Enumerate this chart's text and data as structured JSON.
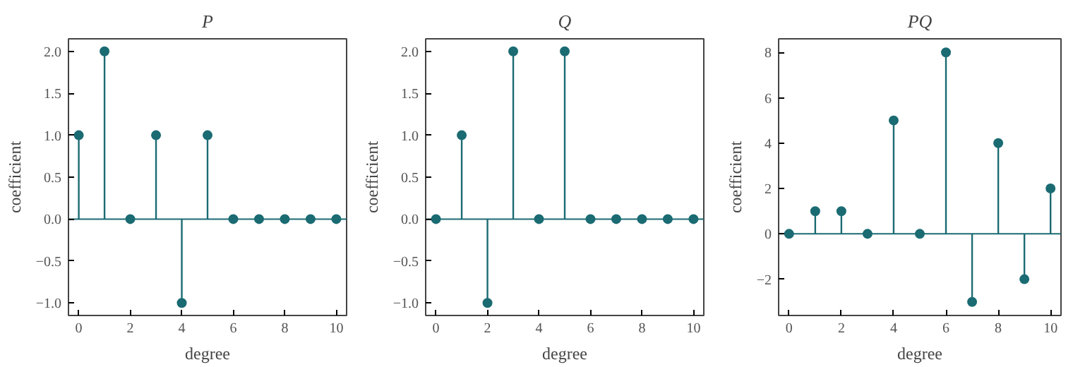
{
  "chart_data": [
    {
      "type": "lollipop",
      "title": "P",
      "ref_lines": [
        {
          "axis": "y",
          "value": 0
        }
      ],
      "xlabel": "degree",
      "ylabel": "coefficient",
      "x": [
        0,
        1,
        2,
        3,
        4,
        5,
        6,
        7,
        8,
        9,
        10
      ],
      "values": [
        1,
        2,
        0,
        1,
        -1,
        1,
        0,
        0,
        0,
        0,
        0
      ],
      "color": "#1b6b73",
      "marker": "circle",
      "xlim": [
        -0.4,
        10.4
      ],
      "ylim": [
        -1.15,
        2.15
      ],
      "xticks": [
        0,
        2,
        4,
        6,
        8,
        10
      ],
      "yticks": [
        {
          "value": -1,
          "label": "−1.0"
        },
        {
          "value": -0.5,
          "label": "−0.5"
        },
        {
          "value": 0,
          "label": "0.0"
        },
        {
          "value": 0.5,
          "label": "0.5"
        },
        {
          "value": 1,
          "label": "1.0"
        },
        {
          "value": 1.5,
          "label": "1.5"
        },
        {
          "value": 2,
          "label": "2.0"
        }
      ]
    },
    {
      "type": "lollipop",
      "title": "Q",
      "ref_lines": [
        {
          "axis": "y",
          "value": 0
        }
      ],
      "xlabel": "degree",
      "ylabel": "coefficient",
      "x": [
        0,
        1,
        2,
        3,
        4,
        5,
        6,
        7,
        8,
        9,
        10
      ],
      "values": [
        0,
        1,
        -1,
        2,
        0,
        2,
        0,
        0,
        0,
        0,
        0
      ],
      "color": "#1b6b73",
      "marker": "circle",
      "xlim": [
        -0.4,
        10.4
      ],
      "ylim": [
        -1.15,
        2.15
      ],
      "xticks": [
        0,
        2,
        4,
        6,
        8,
        10
      ],
      "yticks": [
        {
          "value": -1,
          "label": "−1.0"
        },
        {
          "value": -0.5,
          "label": "−0.5"
        },
        {
          "value": 0,
          "label": "0.0"
        },
        {
          "value": 0.5,
          "label": "0.5"
        },
        {
          "value": 1,
          "label": "1.0"
        },
        {
          "value": 1.5,
          "label": "1.5"
        },
        {
          "value": 2,
          "label": "2.0"
        }
      ]
    },
    {
      "type": "lollipop",
      "title": "PQ",
      "ref_lines": [
        {
          "axis": "y",
          "value": 0
        }
      ],
      "xlabel": "degree",
      "ylabel": "coefficient",
      "x": [
        0,
        1,
        2,
        3,
        4,
        5,
        6,
        7,
        8,
        9,
        10
      ],
      "values": [
        0,
        1,
        1,
        0,
        5,
        0,
        8,
        -3,
        4,
        -2,
        2
      ],
      "color": "#1b6b73",
      "marker": "circle",
      "xlim": [
        -0.4,
        10.4
      ],
      "ylim": [
        -3.6,
        8.6
      ],
      "xticks": [
        0,
        2,
        4,
        6,
        8,
        10
      ],
      "yticks": [
        {
          "value": -2,
          "label": "−2"
        },
        0,
        2,
        4,
        6,
        8
      ]
    }
  ]
}
